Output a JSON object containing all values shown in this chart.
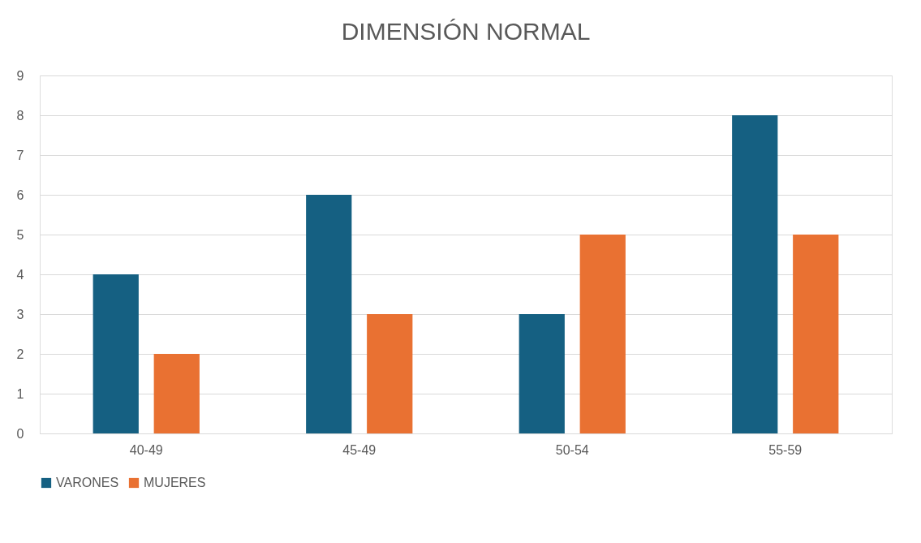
{
  "chart_data": {
    "type": "bar",
    "title": "DIMENSIÓN NORMAL",
    "categories": [
      "40-49",
      "45-49",
      "50-54",
      "55-59"
    ],
    "series": [
      {
        "name": "VARONES",
        "color": "#156082",
        "values": [
          4,
          6,
          3,
          8
        ]
      },
      {
        "name": "MUJERES",
        "color": "#e97132",
        "values": [
          2,
          3,
          5,
          5
        ]
      }
    ],
    "ylim": [
      0,
      9
    ],
    "yticks": [
      0,
      1,
      2,
      3,
      4,
      5,
      6,
      7,
      8,
      9
    ],
    "grid": "y",
    "legend": "bottom"
  }
}
